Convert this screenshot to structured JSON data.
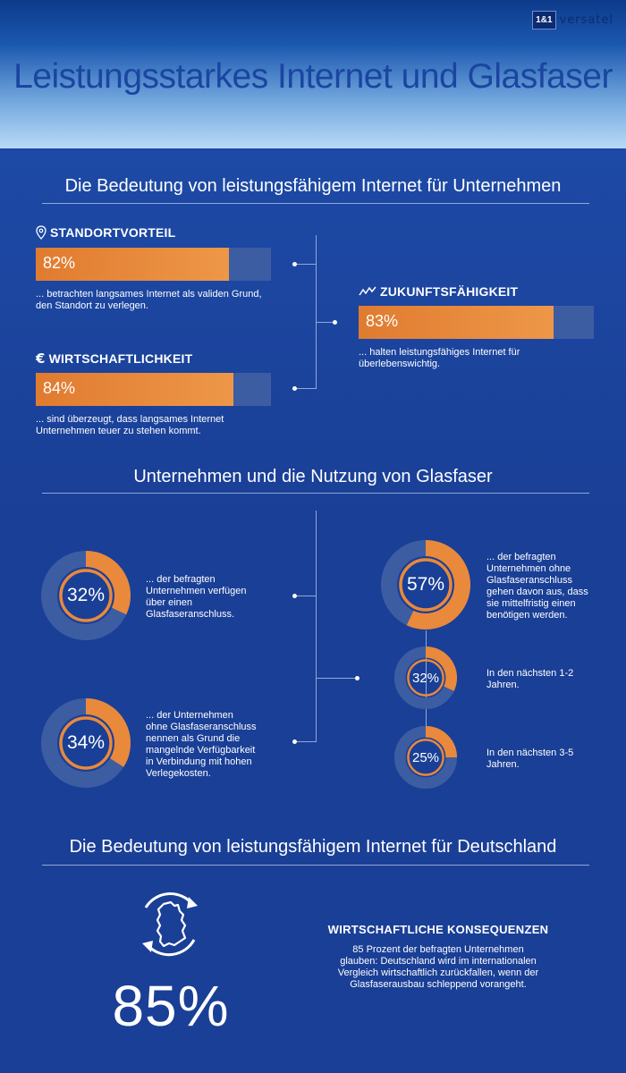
{
  "header": {
    "logo_box": "1&1",
    "logo_text": "versatel",
    "title": "Leistungsstarkes Internet und Glasfaser"
  },
  "section1": {
    "title": "Die Bedeutung von leistungsfähigem Internet für Unternehmen",
    "standort": {
      "heading": "STANDORTVORTEIL",
      "icon": "location-pin-icon",
      "value_label": "82%",
      "value": 82,
      "text_line1": "... betrachten langsames Internet als validen Grund,",
      "text_line2": "den Standort zu verlegen."
    },
    "wirtschaft": {
      "heading": "WIRTSCHAFTLICHKEIT",
      "icon": "euro-icon",
      "value_label": "84%",
      "value": 84,
      "text_line1": "... sind überzeugt, dass langsames Internet",
      "text_line2": "Unternehmen teuer zu stehen kommt."
    },
    "zukunft": {
      "heading": "ZUKUNFTSFÄHIGKEIT",
      "icon": "trend-line-icon",
      "value_label": "83%",
      "value": 83,
      "text_line1": "... halten leistungsfähiges Internet für",
      "text_line2": "überlebenswichtig."
    }
  },
  "section2": {
    "title": "Unternehmen und die Nutzung von Glasfaser",
    "donut_a": {
      "label": "32%",
      "value": 32,
      "lines": [
        "... der befragten",
        "Unternehmen verfügen",
        "über einen",
        "Glasfaseranschluss."
      ]
    },
    "donut_b": {
      "label": "34%",
      "value": 34,
      "lines": [
        "... der Unternehmen",
        "ohne Glasfaseranschluss",
        "nennen als Grund die",
        "mangelnde Verfügbarkeit",
        "in Verbindung mit hohen",
        "Verlegekosten."
      ]
    },
    "donut_c": {
      "label": "57%",
      "value": 57,
      "lines": [
        "... der befragten",
        "Unternehmen ohne",
        "Glasfaseranschluss",
        "gehen davon aus, dass",
        "sie mittelfristig einen",
        "benötigen werden."
      ]
    },
    "donut_d": {
      "label": "32%",
      "value": 32,
      "lines": [
        "In den nächsten 1-2",
        "Jahren."
      ]
    },
    "donut_e": {
      "label": "25%",
      "value": 25,
      "lines": [
        "In den nächsten 3-5",
        "Jahren."
      ]
    }
  },
  "section3": {
    "title": "Die Bedeutung von leistungsfähigem Internet für Deutschland",
    "icon": "germany-refresh-icon",
    "big_value": "85%",
    "heading": "WIRTSCHAFTLICHE KONSEQUENZEN",
    "lines": [
      "85 Prozent der befragten Unternehmen",
      "glauben: Deutschland wird im internationalen",
      "Vergleich wirtschaftlich zurückfallen, wenn der",
      "Glasfaserausbau schleppend vorangeht."
    ]
  },
  "colors": {
    "orange": "#e9893c",
    "track": "#3d5da3",
    "background": "#1a3f96",
    "title_blue": "#1a45a0"
  }
}
